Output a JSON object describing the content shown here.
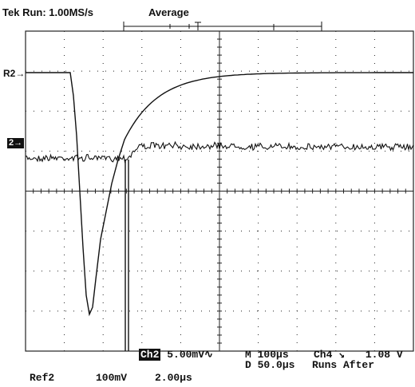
{
  "status": {
    "brand": "Tek",
    "mode": "Run:",
    "sample_rate": "1.00MS/s",
    "acq_mode": "Average"
  },
  "markers": {
    "ref2": "R2",
    "ch2": "2"
  },
  "readout": {
    "ch2_label": "Ch2",
    "ch2_scale": "5.00mV",
    "coupling_symbol": "∿",
    "main_prefix": "M",
    "main_timebase": "100µs",
    "trigger_source": "Ch4",
    "trigger_slope": "↘",
    "trigger_level": "1.08 V",
    "delay_prefix": "D",
    "delay_time": "50.0µs",
    "trigger_mode": "Runs After",
    "ref_label": "Ref2",
    "ref_volts": "100mV",
    "ref_time": "2.00µs"
  },
  "colors": {
    "trace": "#111111",
    "grid": "#222222",
    "background": "#ffffff"
  }
}
